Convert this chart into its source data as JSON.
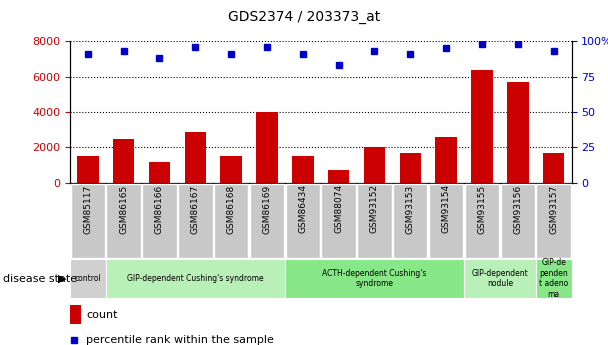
{
  "title": "GDS2374 / 203373_at",
  "categories": [
    "GSM85117",
    "GSM86165",
    "GSM86166",
    "GSM86167",
    "GSM86168",
    "GSM86169",
    "GSM86434",
    "GSM88074",
    "GSM93152",
    "GSM93153",
    "GSM93154",
    "GSM93155",
    "GSM93156",
    "GSM93157"
  ],
  "counts": [
    1500,
    2500,
    1200,
    2900,
    1500,
    4000,
    1500,
    700,
    2000,
    1700,
    2600,
    6400,
    5700,
    1700
  ],
  "percentiles": [
    91,
    93,
    88,
    96,
    91,
    96,
    91,
    83,
    93,
    91,
    95,
    98,
    98,
    93
  ],
  "bar_color": "#cc0000",
  "dot_color": "#0000cc",
  "ylim_left": [
    0,
    8000
  ],
  "ylim_right": [
    0,
    100
  ],
  "yticks_left": [
    0,
    2000,
    4000,
    6000,
    8000
  ],
  "yticks_right": [
    0,
    25,
    50,
    75,
    100
  ],
  "disease_groups": [
    {
      "label": "control",
      "start": 0,
      "end": 1,
      "color": "#d0d0d0"
    },
    {
      "label": "GIP-dependent Cushing's syndrome",
      "start": 1,
      "end": 6,
      "color": "#b8f0b8"
    },
    {
      "label": "ACTH-dependent Cushing's\nsyndrome",
      "start": 6,
      "end": 11,
      "color": "#88e888"
    },
    {
      "label": "GIP-dependent\nnodule",
      "start": 11,
      "end": 13,
      "color": "#b8f0b8"
    },
    {
      "label": "GIP-de\npenden\nt adeno\nma",
      "start": 13,
      "end": 14,
      "color": "#88e888"
    }
  ],
  "xlabel_disease": "disease state",
  "legend_count_label": "count",
  "legend_pct_label": "percentile rank within the sample",
  "tick_label_color_left": "#cc0000",
  "tick_label_color_right": "#0000cc",
  "xticklabel_bg": "#c8c8c8",
  "xticklabel_border": "#aaaaaa"
}
